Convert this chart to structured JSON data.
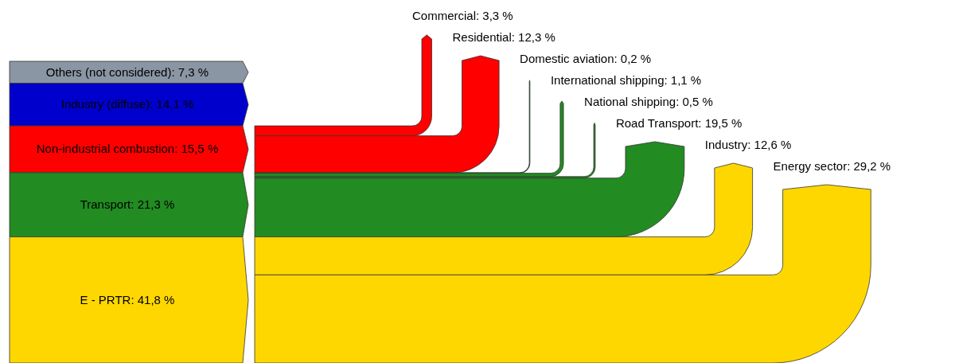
{
  "chart_data": {
    "type": "other",
    "categories": [
      "Others (not considered)",
      "Industry (diffuse)",
      "Non-industrial combustion",
      "Transport",
      "E - PRTR",
      "Commercial",
      "Residential",
      "Domestic aviation",
      "International shipping",
      "National shipping",
      "Road Transport",
      "Industry",
      "Energy sector"
    ],
    "values": [
      7.3,
      14.1,
      15.5,
      21.3,
      41.8,
      3.3,
      12.3,
      0.2,
      1.1,
      0.5,
      19.5,
      12.6,
      29.2
    ],
    "value_labels": [
      ": 7,3 %",
      ": 14,1 %",
      ": 15,5 %",
      ": 21,3 %",
      ": 41,8 %",
      ": 3,3 %",
      ": 12,3 %",
      ": 0,2 %",
      ": 1,1 %",
      ": 0,5 %",
      ": 19,5 %",
      ": 12,6 %",
      ": 29,2 %"
    ],
    "colors": [
      "#8a96a3",
      "#0000cc",
      "#ff0000",
      "#228b22",
      "#ffd700",
      "#ff0000",
      "#ff0000",
      "#228b22",
      "#228b22",
      "#228b22",
      "#228b22",
      "#ffd700",
      "#ffd700"
    ]
  }
}
